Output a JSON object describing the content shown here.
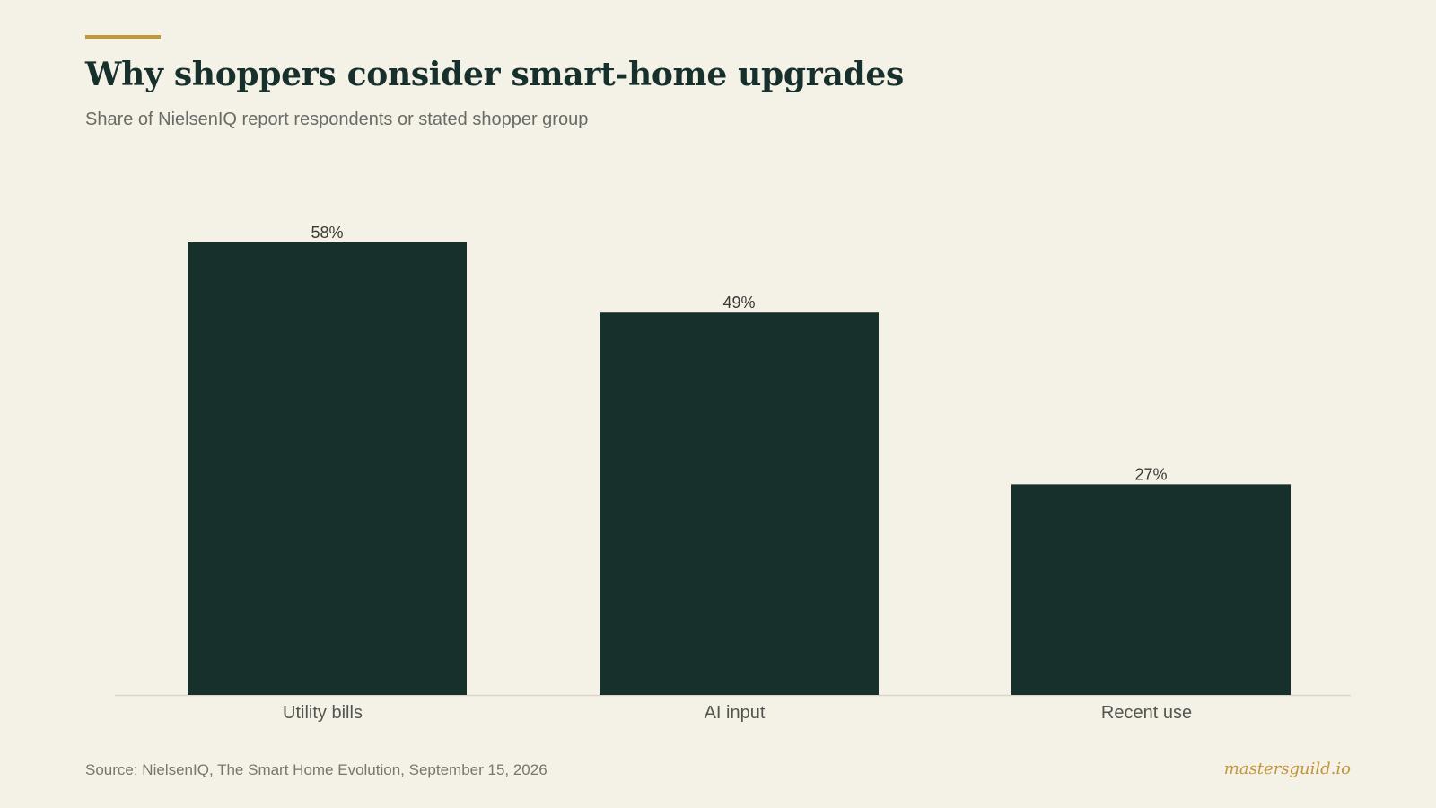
{
  "header": {
    "title": "Why shoppers consider smart-home upgrades",
    "subtitle": "Share of NielsenIQ report respondents or stated shopper group"
  },
  "footer": {
    "source": "Source: NielsenIQ, The Smart Home Evolution, September 15, 2026",
    "brand": "mastersguild.io"
  },
  "colors": {
    "background": "#f4f1e7",
    "bar": "#18302c",
    "title": "#18302c",
    "accent": "#c4963a",
    "axis": "#d9d5c9",
    "label": "#555550",
    "value_label": "#3a3a36"
  },
  "chart_data": {
    "type": "bar",
    "categories": [
      "Utility bills",
      "AI input",
      "Recent use"
    ],
    "values": [
      58,
      49,
      27
    ],
    "value_labels": [
      "58%",
      "49%",
      "27%"
    ],
    "unit": "%",
    "title": "Why shoppers consider smart-home upgrades",
    "subtitle": "Share of NielsenIQ report respondents or stated shopper group",
    "xlabel": "",
    "ylabel": "",
    "ylim": [
      0,
      58
    ],
    "grid": false,
    "legend": "none"
  }
}
